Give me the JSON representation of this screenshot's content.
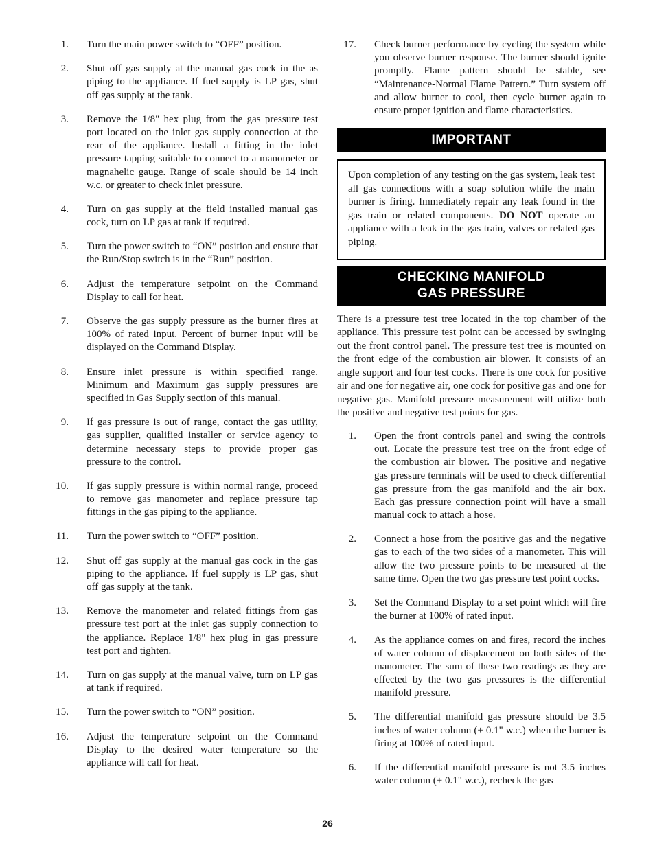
{
  "page_number": "26",
  "colors": {
    "text": "#1a1a1a",
    "background": "#ffffff",
    "header_bg": "#000000",
    "header_fg": "#ffffff",
    "border": "#000000"
  },
  "typography": {
    "body_family": "Times New Roman",
    "body_size_pt": 11,
    "header_family": "Arial",
    "header_size_pt": 14,
    "header_weight": "bold"
  },
  "left_list": [
    {
      "n": "1.",
      "t": "Turn the main power switch to “OFF” position."
    },
    {
      "n": "2.",
      "t": "Shut off gas supply at the manual gas cock in the as piping to the appliance. If fuel supply is LP gas, shut off gas supply at the tank."
    },
    {
      "n": "3.",
      "t": "Remove the 1/8\" hex plug from the gas pressure test port located on the inlet gas supply connection at the rear of the appliance.  Install a fitting in the inlet pressure tapping suitable to connect to a manometer or magnahelic gauge. Range of scale should be 14 inch w.c. or greater to check inlet pressure."
    },
    {
      "n": "4.",
      "t": "Turn on gas supply at the field installed manual gas cock, turn on LP gas at tank if required."
    },
    {
      "n": "5.",
      "t": "Turn the power switch to “ON” position and ensure that the Run/Stop switch is in the “Run” position."
    },
    {
      "n": "6.",
      "t": "Adjust the temperature setpoint on the Command Display to call for heat."
    },
    {
      "n": "7.",
      "t": "Observe the gas supply pressure as the burner fires at 100% of rated input. Percent of burner input will be displayed on the Command Display."
    },
    {
      "n": "8.",
      "t": "Ensure inlet pressure is within specified range. Minimum and Maximum gas supply pressures are specified in Gas Supply section of this manual."
    },
    {
      "n": "9.",
      "t": "If gas pressure is out of range, contact the gas utility, gas supplier, qualified installer or service agency to determine necessary steps to provide proper gas pressure to the control."
    },
    {
      "n": "10.",
      "t": "If gas supply pressure is within normal range, proceed to remove gas manometer and replace pressure tap fittings in the gas piping to the appliance."
    },
    {
      "n": "11.",
      "t": "Turn the power switch to “OFF” position."
    },
    {
      "n": "12.",
      "t": "Shut off gas supply at the manual gas cock in the gas piping to the appliance. If fuel supply is LP gas, shut off gas supply at the tank."
    },
    {
      "n": "13.",
      "t": "Remove the manometer and related fittings from gas pressure test port at the inlet gas supply connection to the appliance. Replace 1/8\" hex plug in gas pressure test port and tighten."
    },
    {
      "n": "14.",
      "t": "Turn on gas supply at the manual valve, turn on LP gas at tank if required."
    },
    {
      "n": "15.",
      "t": "Turn the power switch to “ON” position."
    },
    {
      "n": "16.",
      "t": "Adjust the temperature setpoint on the Command Display to the desired water temperature so the appliance will call for heat."
    }
  ],
  "right_top_item": {
    "n": "17.",
    "t": "Check burner performance by cycling the system while you observe burner response.  The burner should ignite promptly.  Flame pattern should be stable, see “Maintenance-Normal Flame Pattern.” Turn system off and allow burner to cool, then cycle burner again to ensure proper ignition and flame characteristics."
  },
  "important_header": "IMPORTANT",
  "important_body_pre": "Upon completion of any testing on the gas system, leak test all gas connections with a soap solution while the main burner is firing.  Immediately repair any leak found in the gas train or related components.  ",
  "important_body_bold": "DO NOT",
  "important_body_post": " operate an appliance with a leak in the gas train, valves or related gas piping.",
  "section_header_l1": "CHECKING MANIFOLD",
  "section_header_l2": "GAS PRESSURE",
  "section_intro": "There is a pressure test tree located in the top chamber of the appliance. This pressure test point can be accessed by swinging out the front control panel.  The pressure test tree is mounted on the front edge of the combustion air blower.  It consists of an angle support and four test cocks. There is one cock for positive air and one for negative air, one cock for positive gas and one for negative gas. Manifold pressure measurement will utilize both the positive and negative test points for gas.",
  "right_list": [
    {
      "n": "1.",
      "t": "Open the front controls panel and swing the controls out.  Locate the pressure test tree on the front edge of the combustion air blower. The positive and negative gas pressure terminals will be used to check differential gas pressure from the gas manifold and the air box. Each gas pressure connection point will have a small manual cock to attach a hose."
    },
    {
      "n": "2.",
      "t": "Connect a hose from the positive gas and the negative gas to each of the  two sides of a manometer. This will allow the two pressure points to be measured at the same time.   Open the two gas pressure test point cocks."
    },
    {
      "n": "3.",
      "t": "Set the Command Display to a set point  which will fire the burner at 100% of rated input."
    },
    {
      "n": "4.",
      "t": "As the appliance comes on and fires, record the inches of water column of displacement on both sides of the manometer.  The sum of these two readings as they are effected by the two gas pressures is the differential manifold pressure."
    },
    {
      "n": "5.",
      "t": "The differential manifold gas pressure should be 3.5 inches of water column (+ 0.1\" w.c.) when the burner is firing at 100% of rated input."
    },
    {
      "n": "6.",
      "t": "If the differential manifold pressure is not 3.5 inches water column  (+ 0.1\" w.c.), recheck the gas"
    }
  ]
}
